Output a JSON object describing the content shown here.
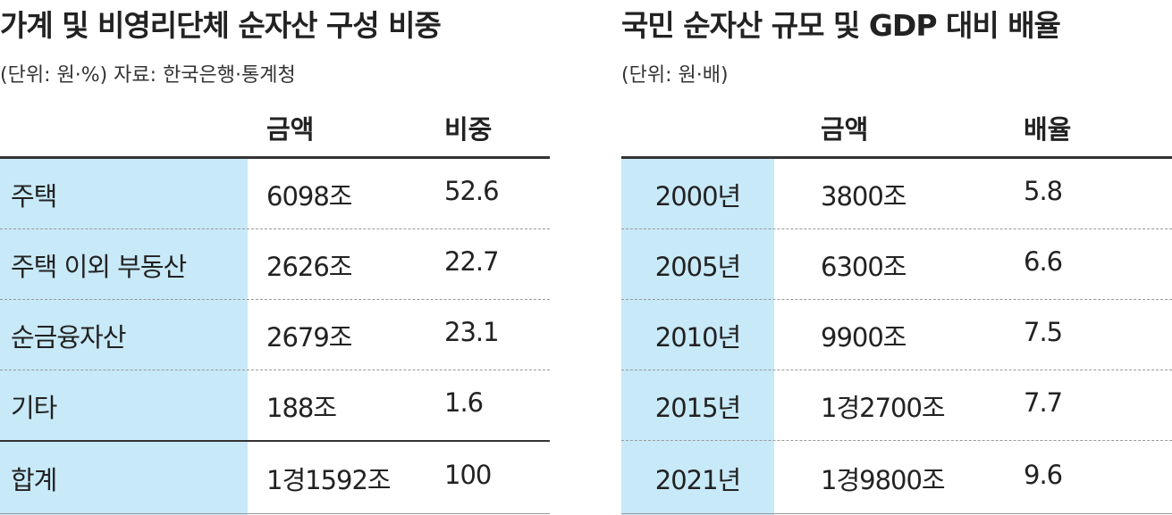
{
  "left": {
    "title": "가계 및 비영리단체 순자산 구성 비중",
    "subtitle": "(단위: 원·%) 자료: 한국은행·통계청",
    "header": [
      "금액",
      "비중"
    ],
    "rows": [
      [
        "주택",
        "6098조",
        "52.6"
      ],
      [
        "주택 이외 부동산",
        "2626조",
        "22.7"
      ],
      [
        "순금융자산",
        "2679조",
        "23.1"
      ],
      [
        "기타",
        "188조",
        "1.6"
      ],
      [
        "합계",
        "1경1592조",
        "100"
      ]
    ]
  },
  "right": {
    "title": "국민 순자산 규모 및 GDP 대비 배율",
    "subtitle": "(단위: 원·배)",
    "header": [
      "금액",
      "배율"
    ],
    "rows": [
      [
        "2000년",
        "3800조",
        "5.8"
      ],
      [
        "2005년",
        "6300조",
        "6.6"
      ],
      [
        "2010년",
        "9900조",
        "7.5"
      ],
      [
        "2015년",
        "1경2700조",
        "7.7"
      ],
      [
        "2021년",
        "1경9800조",
        "9.6"
      ]
    ]
  }
}
